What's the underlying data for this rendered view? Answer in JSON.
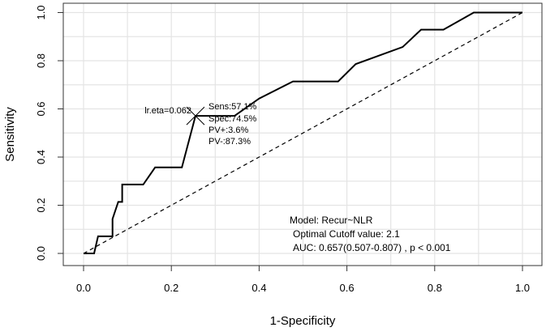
{
  "chart_data": {
    "type": "line",
    "xlabel": "1-Specificity",
    "ylabel": "Sensitivity",
    "xlim": [
      0,
      1
    ],
    "ylim": [
      0,
      1
    ],
    "grid": true,
    "x_ticks": [
      "0.0",
      "0.2",
      "0.4",
      "0.6",
      "0.8",
      "1.0"
    ],
    "y_ticks": [
      "0.0",
      "0.2",
      "0.4",
      "0.6",
      "0.8",
      "1.0"
    ],
    "series": [
      {
        "style": "solid",
        "x": [
          0,
          0.024,
          0.033,
          0.066,
          0.066,
          0.079,
          0.088,
          0.088,
          0.136,
          0.163,
          0.224,
          0.255,
          0.344,
          0.4,
          0.477,
          0.58,
          0.62,
          0.727,
          0.769,
          0.82,
          0.889,
          1.0
        ],
        "y": [
          0,
          0,
          0.071,
          0.071,
          0.143,
          0.214,
          0.214,
          0.286,
          0.286,
          0.357,
          0.357,
          0.571,
          0.571,
          0.643,
          0.714,
          0.714,
          0.786,
          0.857,
          0.929,
          0.929,
          1.0,
          1.0
        ]
      },
      {
        "style": "dashed",
        "x": [
          0,
          1
        ],
        "y": [
          0,
          1
        ]
      }
    ],
    "optimal_point": {
      "x": 0.255,
      "y": 0.571
    },
    "annotations": {
      "cutpoint_label": "lr.eta=0.062",
      "stats": [
        "Sens:57.1%",
        "Spec:74.5%",
        "PV+:3.6%",
        "PV-:87.3%"
      ],
      "model": [
        "Model: Recur~NLR",
        "Optimal Cutoff value:  2.1",
        "AUC:  0.657(0.507-0.807) , p < 0.001"
      ]
    }
  }
}
